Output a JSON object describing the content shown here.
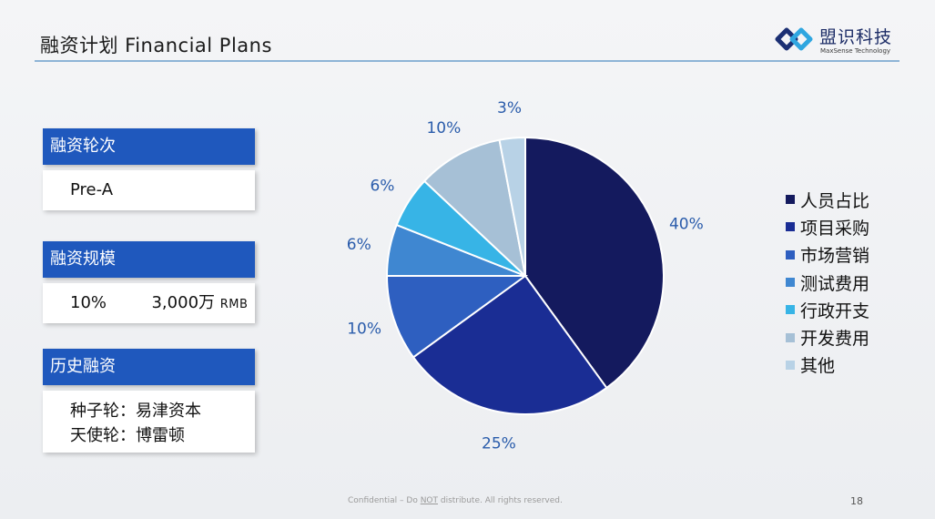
{
  "header": {
    "title": "融资计划  Financial Plans",
    "logo_name": "盟识科技",
    "logo_sub": "MaxSense Technology"
  },
  "cards": {
    "round": {
      "label": "融资轮次",
      "value": "Pre-A"
    },
    "scale": {
      "label": "融资规模",
      "percent": "10%",
      "amount": "3,000万",
      "currency": "RMB"
    },
    "history": {
      "label": "历史融资",
      "line1": "种子轮：易津资本",
      "line2": "天使轮：博雷顿"
    }
  },
  "chart_data": {
    "type": "pie",
    "categories": [
      "人员占比",
      "项目采购",
      "市场营销",
      "测试费用",
      "行政开支",
      "开发费用",
      "其他"
    ],
    "values": [
      40,
      25,
      10,
      6,
      6,
      10,
      3
    ],
    "labels": [
      "40%",
      "25%",
      "10%",
      "6%",
      "6%",
      "10%",
      "3%"
    ],
    "colors": [
      "#141a5e",
      "#1a2d94",
      "#2e5fc0",
      "#3f87d1",
      "#37b4e6",
      "#a6c0d6",
      "#b8d2e6"
    ],
    "legend_position": "right",
    "label_color": "#2a5cab"
  },
  "footer": {
    "confidential_pre": "Confidential – Do ",
    "confidential_not": "NOT",
    "confidential_post": " distribute. All rights reserved.",
    "page": "18"
  }
}
